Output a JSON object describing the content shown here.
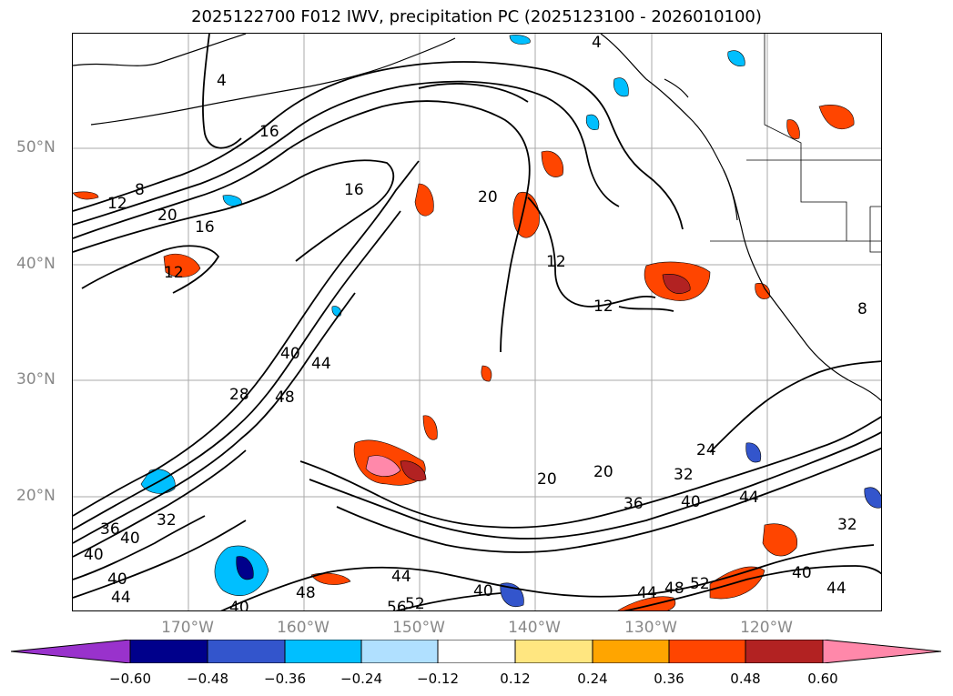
{
  "title": "2025122700 F012 IWV, precipitation PC (2025123100 - 2026010100)",
  "lat_labels": [
    "50°N",
    "40°N",
    "30°N",
    "20°N"
  ],
  "lon_labels": [
    "170°W",
    "160°W",
    "150°W",
    "140°W",
    "130°W",
    "120°W"
  ],
  "colorbar": {
    "ticks": [
      "−0.60",
      "−0.48",
      "−0.36",
      "−0.24",
      "−0.12",
      "0.12",
      "0.24",
      "0.36",
      "0.48",
      "0.60"
    ],
    "colors": [
      "#9932cc",
      "#00008b",
      "#3355cc",
      "#00bfff",
      "#b0e0ff",
      "#ffffff",
      "#ffe680",
      "#ffa500",
      "#ff4500",
      "#b22222",
      "#ff88aa"
    ]
  },
  "contour_labels": [
    {
      "text": "4"
    },
    {
      "text": "8"
    },
    {
      "text": "12"
    },
    {
      "text": "16"
    },
    {
      "text": "16"
    },
    {
      "text": "20"
    },
    {
      "text": "16"
    },
    {
      "text": "12"
    },
    {
      "text": "20"
    },
    {
      "text": "12"
    },
    {
      "text": "12"
    },
    {
      "text": "40"
    },
    {
      "text": "44"
    },
    {
      "text": "48"
    },
    {
      "text": "28"
    },
    {
      "text": "36"
    },
    {
      "text": "40"
    },
    {
      "text": "32"
    },
    {
      "text": "40"
    },
    {
      "text": "40"
    },
    {
      "text": "44"
    },
    {
      "text": "20"
    },
    {
      "text": "20"
    },
    {
      "text": "36"
    },
    {
      "text": "40"
    },
    {
      "text": "44"
    },
    {
      "text": "24"
    },
    {
      "text": "32"
    },
    {
      "text": "32"
    },
    {
      "text": "40"
    },
    {
      "text": "44"
    },
    {
      "text": "44"
    },
    {
      "text": "52"
    },
    {
      "text": "56"
    },
    {
      "text": "48"
    },
    {
      "text": "40"
    },
    {
      "text": "44"
    },
    {
      "text": "48"
    },
    {
      "text": "52"
    },
    {
      "text": "40"
    },
    {
      "text": "4"
    },
    {
      "text": "8"
    }
  ]
}
